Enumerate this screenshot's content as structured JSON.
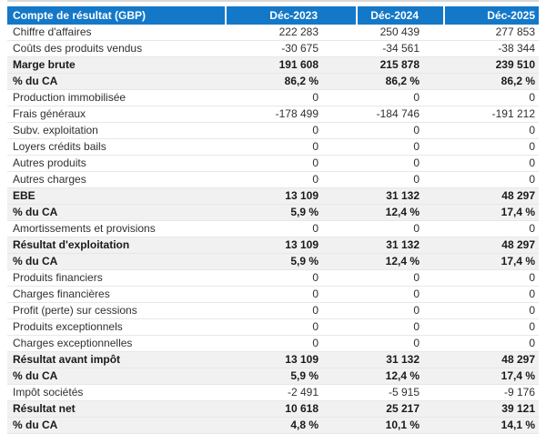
{
  "colors": {
    "header_bg": "#1478c8",
    "header_text": "#ffffff",
    "summary_row_bg": "#f1f1f1",
    "row_border": "#e7e7e7",
    "body_text": "#303030",
    "top_rule": "#d8d8d8"
  },
  "table": {
    "header": {
      "label": "Compte de résultat (GBP)",
      "columns": [
        "Déc-2023",
        "Déc-2024",
        "Déc-2025"
      ]
    },
    "rows": [
      {
        "label": "Chiffre d'affaires",
        "values": [
          "222 283",
          "250 439",
          "277 853"
        ],
        "bold": false
      },
      {
        "label": "Coûts des produits vendus",
        "values": [
          "-30 675",
          "-34 561",
          "-38 344"
        ],
        "bold": false
      },
      {
        "label": "Marge brute",
        "values": [
          "191 608",
          "215 878",
          "239 510"
        ],
        "bold": true
      },
      {
        "label": "% du CA",
        "values": [
          "86,2 %",
          "86,2 %",
          "86,2 %"
        ],
        "bold": true
      },
      {
        "label": "Production immobilisée",
        "values": [
          "0",
          "0",
          "0"
        ],
        "bold": false
      },
      {
        "label": "Frais généraux",
        "values": [
          "-178 499",
          "-184 746",
          "-191 212"
        ],
        "bold": false
      },
      {
        "label": "Subv. exploitation",
        "values": [
          "0",
          "0",
          "0"
        ],
        "bold": false
      },
      {
        "label": "Loyers crédits bails",
        "values": [
          "0",
          "0",
          "0"
        ],
        "bold": false
      },
      {
        "label": "Autres produits",
        "values": [
          "0",
          "0",
          "0"
        ],
        "bold": false
      },
      {
        "label": "Autres charges",
        "values": [
          "0",
          "0",
          "0"
        ],
        "bold": false
      },
      {
        "label": "EBE",
        "values": [
          "13 109",
          "31 132",
          "48 297"
        ],
        "bold": true
      },
      {
        "label": "% du CA",
        "values": [
          "5,9 %",
          "12,4 %",
          "17,4 %"
        ],
        "bold": true
      },
      {
        "label": "Amortissements et provisions",
        "values": [
          "0",
          "0",
          "0"
        ],
        "bold": false
      },
      {
        "label": "Résultat d'exploitation",
        "values": [
          "13 109",
          "31 132",
          "48 297"
        ],
        "bold": true
      },
      {
        "label": "% du CA",
        "values": [
          "5,9 %",
          "12,4 %",
          "17,4 %"
        ],
        "bold": true
      },
      {
        "label": "Produits financiers",
        "values": [
          "0",
          "0",
          "0"
        ],
        "bold": false
      },
      {
        "label": "Charges financières",
        "values": [
          "0",
          "0",
          "0"
        ],
        "bold": false
      },
      {
        "label": "Profit (perte) sur cessions",
        "values": [
          "0",
          "0",
          "0"
        ],
        "bold": false
      },
      {
        "label": "Produits exceptionnels",
        "values": [
          "0",
          "0",
          "0"
        ],
        "bold": false
      },
      {
        "label": "Charges exceptionnelles",
        "values": [
          "0",
          "0",
          "0"
        ],
        "bold": false
      },
      {
        "label": "Résultat avant impôt",
        "values": [
          "13 109",
          "31 132",
          "48 297"
        ],
        "bold": true
      },
      {
        "label": "% du CA",
        "values": [
          "5,9 %",
          "12,4 %",
          "17,4 %"
        ],
        "bold": true
      },
      {
        "label": "Impôt sociétés",
        "values": [
          "-2 491",
          "-5 915",
          "-9 176"
        ],
        "bold": false
      },
      {
        "label": "Résultat net",
        "values": [
          "10 618",
          "25 217",
          "39 121"
        ],
        "bold": true
      },
      {
        "label": "% du CA",
        "values": [
          "4,8 %",
          "10,1 %",
          "14,1 %"
        ],
        "bold": true
      }
    ]
  }
}
